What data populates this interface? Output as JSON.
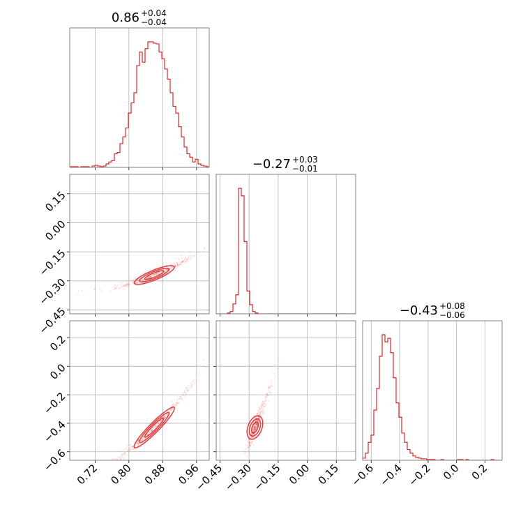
{
  "chart_data": {
    "type": "corner",
    "color": "#d62728",
    "grid": true,
    "parameters": [
      {
        "title_value": "0.86",
        "title_plus": "+0.04",
        "title_minus": "−0.04",
        "range": [
          0.66,
          0.99
        ],
        "ticks": [
          0.72,
          0.8,
          0.88,
          0.96
        ],
        "tick_labels": [
          "0.72",
          "0.80",
          "0.88",
          "0.96"
        ]
      },
      {
        "title_value": "−0.27",
        "title_plus": "+0.03",
        "title_minus": "−0.01",
        "range": [
          -0.47,
          0.25
        ],
        "ticks": [
          -0.45,
          -0.3,
          -0.15,
          0.0,
          0.15
        ],
        "tick_labels": [
          "−0.45",
          "−0.30",
          "−0.15",
          "0.00",
          "0.15"
        ]
      },
      {
        "title_value": "−0.43",
        "title_plus": "+0.08",
        "title_minus": "−0.06",
        "range": [
          -0.66,
          0.32
        ],
        "ticks": [
          -0.6,
          -0.4,
          -0.2,
          0.0,
          0.2
        ],
        "tick_labels": [
          "−0.6",
          "−0.4",
          "−0.2",
          "0.0",
          "0.2"
        ]
      }
    ],
    "histograms": [
      {
        "param": 0,
        "bin_start": 0.66,
        "bin_width": 0.0066,
        "counts": [
          1,
          1,
          1,
          0,
          1,
          1,
          1,
          0,
          2,
          3,
          2,
          1,
          2,
          5,
          8,
          10,
          20,
          22,
          35,
          45,
          58,
          80,
          95,
          110,
          150,
          170,
          155,
          175,
          185,
          185,
          183,
          182,
          170,
          160,
          145,
          130,
          110,
          90,
          80,
          60,
          45,
          30,
          20,
          15,
          8,
          12,
          5,
          3,
          2,
          1
        ]
      },
      {
        "param": 1,
        "bin_start": -0.47,
        "bin_width": 0.0144,
        "counts": [
          0,
          0,
          0,
          0,
          1,
          3,
          13,
          25,
          165,
          155,
          95,
          30,
          12,
          3,
          1,
          0,
          0,
          0,
          0,
          0,
          0,
          0,
          0,
          0,
          0,
          0,
          0,
          0,
          0,
          0,
          0,
          0,
          0,
          0,
          0,
          0,
          0,
          0,
          0,
          0,
          0,
          0,
          0,
          0,
          0,
          0,
          0,
          0,
          0,
          0
        ]
      },
      {
        "param": 2,
        "bin_start": -0.66,
        "bin_width": 0.0196,
        "counts": [
          3,
          10,
          25,
          35,
          70,
          100,
          145,
          175,
          165,
          170,
          150,
          115,
          80,
          60,
          38,
          25,
          15,
          10,
          6,
          4,
          3,
          2,
          2,
          1,
          1,
          1,
          0,
          0,
          1,
          0,
          0,
          0,
          0,
          0,
          1,
          1,
          0,
          1,
          0,
          0,
          0,
          0,
          0,
          0,
          0,
          0,
          1,
          0,
          0,
          0
        ]
      }
    ],
    "scatter_panels": [
      {
        "x_param": 0,
        "y_param": 1,
        "relation": "y = -0.27 + 0.9*(x-0.86) + 2.2*(x-0.86)^2",
        "x_samples_range": [
          0.66,
          0.99
        ]
      },
      {
        "x_param": 0,
        "y_param": 2,
        "relation": "y = -0.43 + 3.0*(x-0.86) + 5.0*(x-0.86)^2",
        "x_samples_range": [
          0.66,
          0.99
        ]
      },
      {
        "x_param": 1,
        "y_param": 2,
        "relation": "y = -0.43 + 3.5*(x+0.27)",
        "x_samples_range": [
          -0.34,
          -0.15
        ]
      }
    ],
    "contour_levels": [
      "inner",
      "outer"
    ]
  }
}
